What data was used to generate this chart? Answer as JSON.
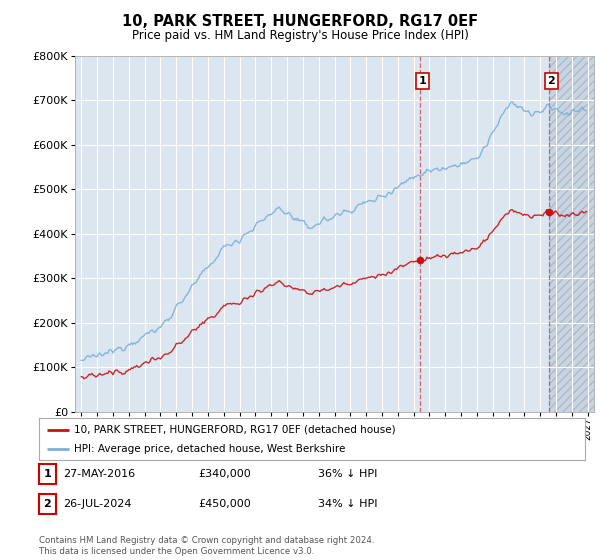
{
  "title": "10, PARK STREET, HUNGERFORD, RG17 0EF",
  "subtitle": "Price paid vs. HM Land Registry's House Price Index (HPI)",
  "background_color": "#ffffff",
  "plot_background": "#dce6f0",
  "hatch_background": "#c8d4e0",
  "grid_color": "#ffffff",
  "hpi_color": "#7ab0d8",
  "price_color": "#cc1111",
  "vline_color": "#cc4444",
  "annotation_box_color": "#cc0000",
  "sale1_x": 2016.41,
  "sale1_y": 340000,
  "sale2_x": 2024.55,
  "sale2_y": 450000,
  "legend_line1": "10, PARK STREET, HUNGERFORD, RG17 0EF (detached house)",
  "legend_line2": "HPI: Average price, detached house, West Berkshire",
  "table_row1": [
    "1",
    "27-MAY-2016",
    "£340,000",
    "36% ↓ HPI"
  ],
  "table_row2": [
    "2",
    "26-JUL-2024",
    "£450,000",
    "34% ↓ HPI"
  ],
  "footer": "Contains HM Land Registry data © Crown copyright and database right 2024.\nThis data is licensed under the Open Government Licence v3.0.",
  "ylim": [
    0,
    800000
  ],
  "xlim_start": 1994.6,
  "xlim_end": 2027.4,
  "hatch_start": 2024.55
}
